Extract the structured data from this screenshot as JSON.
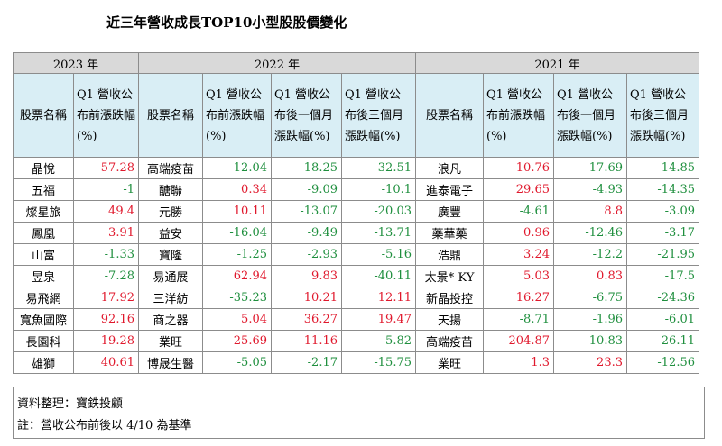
{
  "title": "近三年營收成長TOP10小型股股價變化",
  "years": {
    "y2023": "2023 年",
    "y2022": "2022 年",
    "y2021": "2021 年"
  },
  "headers": {
    "name": "股票名稱",
    "before": "Q1 營收公布前漲跌幅(%)",
    "after1": "Q1 營收公布後一個月漲跌幅(%)",
    "after3": "Q1 營收公布後三個月漲跌幅(%)"
  },
  "rows": [
    {
      "a": "晶悅",
      "av": "57.28",
      "b": "高端疫苗",
      "b1": "-12.04",
      "b2": "-18.25",
      "b3": "-32.51",
      "c": "浪凡",
      "c1": "10.76",
      "c2": "-17.69",
      "c3": "-14.85"
    },
    {
      "a": "五福",
      "av": "-1",
      "b": "醣聯",
      "b1": "0.34",
      "b2": "-9.09",
      "b3": "-10.1",
      "c": "進泰電子",
      "c1": "29.65",
      "c2": "-4.93",
      "c3": "-14.35"
    },
    {
      "a": "燦星旅",
      "av": "49.4",
      "b": "元勝",
      "b1": "10.11",
      "b2": "-13.07",
      "b3": "-20.03",
      "c": "廣豐",
      "c1": "-4.61",
      "c2": "8.8",
      "c3": "-3.09"
    },
    {
      "a": "鳳凰",
      "av": "3.91",
      "b": "益安",
      "b1": "-16.04",
      "b2": "-9.49",
      "b3": "-13.71",
      "c": "藥華藥",
      "c1": "0.96",
      "c2": "-12.46",
      "c3": "-3.17"
    },
    {
      "a": "山富",
      "av": "-1.33",
      "b": "寶隆",
      "b1": "-1.25",
      "b2": "-2.93",
      "b3": "-5.16",
      "c": "浩鼎",
      "c1": "3.24",
      "c2": "-12.2",
      "c3": "-21.95"
    },
    {
      "a": "昱泉",
      "av": "-7.28",
      "b": "易通展",
      "b1": "62.94",
      "b2": "9.83",
      "b3": "-40.11",
      "c": "太景*-KY",
      "c1": "5.03",
      "c2": "0.83",
      "c3": "-17.5"
    },
    {
      "a": "易飛網",
      "av": "17.92",
      "b": "三洋紡",
      "b1": "-35.23",
      "b2": "10.21",
      "b3": "12.11",
      "c": "新晶投控",
      "c1": "16.27",
      "c2": "-6.75",
      "c3": "-24.36"
    },
    {
      "a": "寬魚國際",
      "av": "92.16",
      "b": "商之器",
      "b1": "5.04",
      "b2": "36.27",
      "b3": "19.47",
      "c": "天揚",
      "c1": "-8.71",
      "c2": "-1.96",
      "c3": "-6.01"
    },
    {
      "a": "長園科",
      "av": "19.28",
      "b": "業旺",
      "b1": "25.69",
      "b2": "11.16",
      "b3": "-5.82",
      "c": "高端疫苗",
      "c1": "204.87",
      "c2": "-10.83",
      "c3": "-26.11"
    },
    {
      "a": "雄獅",
      "av": "40.61",
      "b": "博晟生醫",
      "b1": "-5.05",
      "b2": "-2.17",
      "b3": "-15.75",
      "c": "業旺",
      "c1": "1.3",
      "c2": "23.3",
      "c3": "-12.56"
    }
  ],
  "notes": {
    "source": "資料整理：寶鉄投顧",
    "remark": "註：營收公布前後以 4/10 為基準"
  },
  "colors": {
    "positive": "#e0182c",
    "negative": "#1f8f3e",
    "header_bg": "#d9eef5",
    "year_bg": "#d9d9d9"
  }
}
